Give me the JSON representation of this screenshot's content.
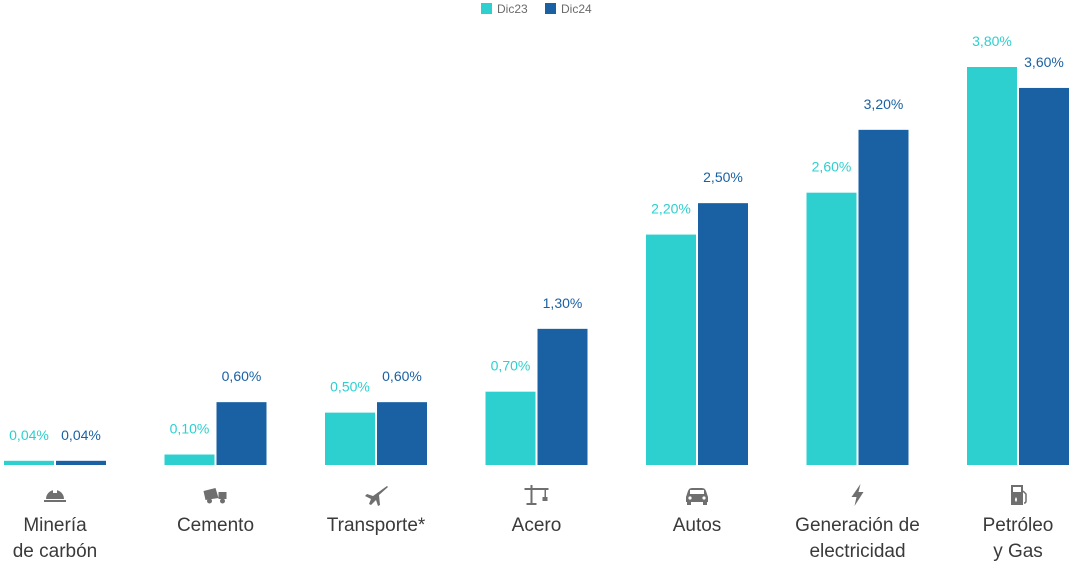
{
  "chart_data": {
    "type": "bar",
    "title": "",
    "xlabel": "",
    "ylabel": "",
    "ylim": [
      0,
      4.0
    ],
    "grid": false,
    "legend_position": "top-center",
    "categories": [
      {
        "lines": [
          "Minería",
          "de carbón"
        ],
        "icon": "hard-hat-icon"
      },
      {
        "lines": [
          "Cemento"
        ],
        "icon": "cement-mixer-icon"
      },
      {
        "lines": [
          "Transporte*"
        ],
        "icon": "airplane-icon"
      },
      {
        "lines": [
          "Acero"
        ],
        "icon": "construction-crane-icon"
      },
      {
        "lines": [
          "Autos"
        ],
        "icon": "car-icon"
      },
      {
        "lines": [
          "Generación de",
          "electricidad"
        ],
        "icon": "lightning-bolt-icon"
      },
      {
        "lines": [
          "Petróleo",
          "y Gas"
        ],
        "icon": "fuel-pump-icon"
      }
    ],
    "series": [
      {
        "name": "Dic23",
        "color": "#2ecfcf",
        "values": [
          0.04,
          0.1,
          0.5,
          0.7,
          2.2,
          2.6,
          3.8
        ],
        "labels": [
          "0,04%",
          "0,10%",
          "0,50%",
          "0,70%",
          "2,20%",
          "2,60%",
          "3,80%"
        ]
      },
      {
        "name": "Dic24",
        "color": "#1a61a3",
        "values": [
          0.04,
          0.6,
          0.6,
          1.3,
          2.5,
          3.2,
          3.6
        ],
        "labels": [
          "0,04%",
          "0,60%",
          "0,60%",
          "1,30%",
          "2,50%",
          "3,20%",
          "3,60%"
        ]
      }
    ]
  }
}
